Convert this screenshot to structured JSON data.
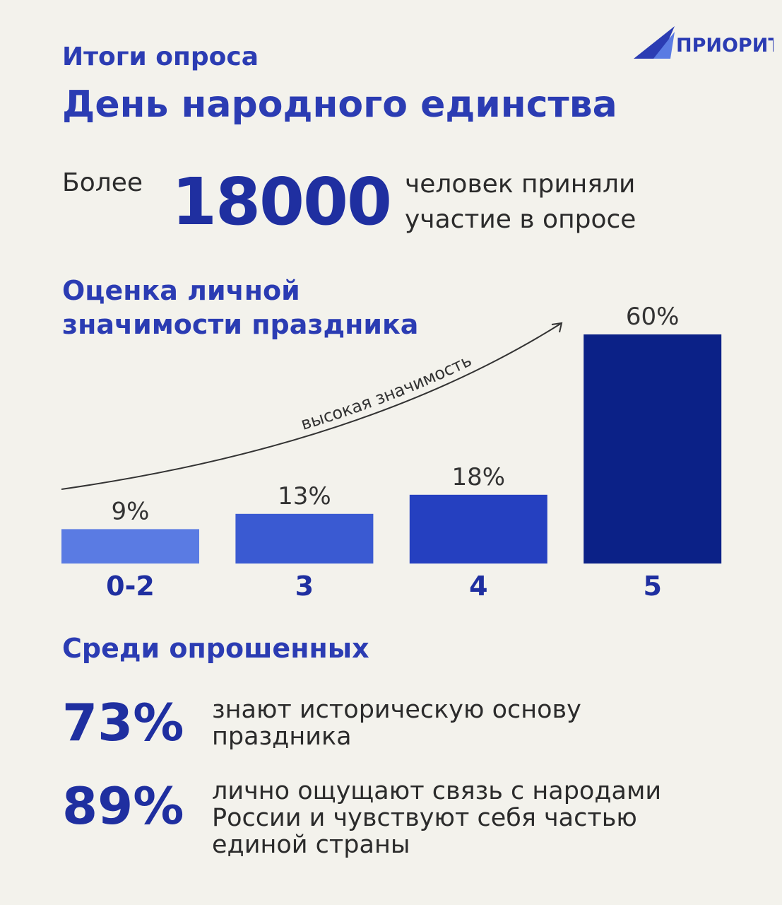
{
  "header": {
    "subtitle": "Итоги опроса",
    "title": "День народного единства",
    "logo": "ПРИОРИТЕТ"
  },
  "participants": {
    "prefix": "Более",
    "number": "18000",
    "line1": "человек приняли",
    "line2": "участие в опросе"
  },
  "chart_data": {
    "type": "bar",
    "title": "Оценка личной значимости праздника",
    "categories": [
      "0-2",
      "3",
      "4",
      "5"
    ],
    "values": [
      9,
      13,
      18,
      60
    ],
    "value_labels": [
      "9%",
      "13%",
      "18%",
      "60%"
    ],
    "colors": [
      "#5a7be3",
      "#3a5ad2",
      "#2540c0",
      "#0b2187"
    ],
    "annotation": "высокая значимость"
  },
  "stats": {
    "title": "Среди опрошенных",
    "items": [
      {
        "value": "73%",
        "text": "знают историческую основу праздника"
      },
      {
        "value": "89%",
        "text": "лично ощущают связь с народами России и чувствуют себя частью единой страны"
      }
    ]
  }
}
